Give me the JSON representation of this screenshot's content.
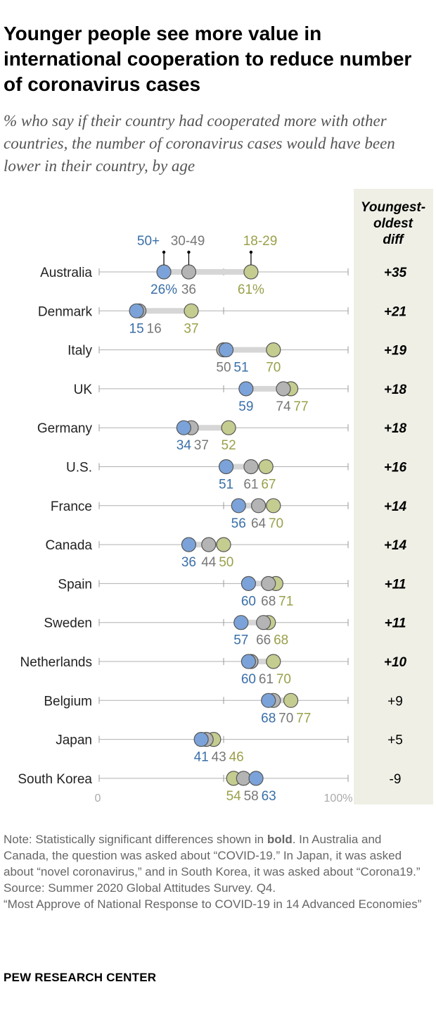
{
  "title": "Younger people see more value in international cooperation to reduce number of coronavirus cases",
  "subtitle": "% who say if their country had cooperated more with other countries, the number of coronavirus cases would have been lower in their country, by age",
  "colors": {
    "age_50_plus": "#7ba3d9",
    "age_30_49": "#b4b4b4",
    "age_18_29": "#c5cc8f",
    "label_50_plus": "#3a6fa8",
    "label_30_49": "#777777",
    "label_18_29": "#9aa04a",
    "diff_panel": "#efefe6"
  },
  "chart_data": {
    "type": "dot",
    "series": [
      {
        "name": "50+",
        "values": [
          26,
          15,
          51,
          59,
          34,
          51,
          56,
          36,
          60,
          57,
          60,
          68,
          41,
          63
        ]
      },
      {
        "name": "30-49",
        "values": [
          36,
          16,
          50,
          74,
          37,
          61,
          64,
          44,
          68,
          66,
          61,
          70,
          43,
          58
        ]
      },
      {
        "name": "18-29",
        "values": [
          61,
          37,
          70,
          77,
          52,
          67,
          70,
          50,
          71,
          68,
          70,
          77,
          46,
          54
        ]
      }
    ],
    "categories": [
      "Australia",
      "Denmark",
      "Italy",
      "UK",
      "Germany",
      "U.S.",
      "France",
      "Canada",
      "Spain",
      "Sweden",
      "Netherlands",
      "Belgium",
      "Japan",
      "South Korea"
    ],
    "diff_header": "Youngest-oldest diff",
    "diffs": [
      "+35",
      "+21",
      "+19",
      "+18",
      "+18",
      "+16",
      "+14",
      "+14",
      "+11",
      "+11",
      "+10",
      "+9",
      "+5",
      "-9"
    ],
    "diff_significant": [
      true,
      true,
      true,
      true,
      true,
      true,
      true,
      true,
      true,
      true,
      true,
      false,
      false,
      false
    ],
    "first_row_labels": [
      "26%",
      "36",
      "61%"
    ],
    "x_tick_labels": [
      "0",
      "100%"
    ],
    "xlim": [
      0,
      100
    ]
  },
  "notes": {
    "note_prefix": "Note: Statistically significant differences shown in ",
    "note_bold": "bold",
    "note_rest": ". In Australia and Canada, the question was asked about “COVID-19.” In Japan, it was asked about “novel coronavirus,” and in South Korea, it was asked about “Corona19.”",
    "source": "Source: Summer 2020 Global Attitudes Survey. Q4.",
    "report": "“Most Approve of National Response to COVID-19 in 14 Advanced Economies”"
  },
  "brand": "PEW RESEARCH CENTER"
}
